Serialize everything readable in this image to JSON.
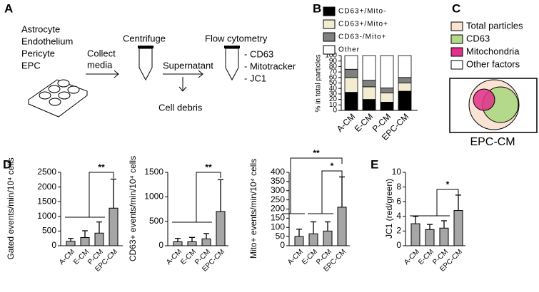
{
  "panel_labels": [
    "A",
    "B",
    "C",
    "D",
    "E"
  ],
  "panel_a": {
    "cells": [
      "Astrocyte",
      "Endothelium",
      "Pericyte",
      "EPC"
    ],
    "collect": [
      "Collect",
      "media"
    ],
    "centrifuge": "Centrifuge",
    "supernatant": "Supernatant",
    "debris": "Cell debris",
    "flow": "Flow cytometry",
    "markers": [
      "- CD63",
      "- Mitotracker",
      "- JC1"
    ]
  },
  "panel_c": {
    "legend": [
      {
        "name": "Total particles",
        "color": "#fbe3d4"
      },
      {
        "name": "CD63",
        "color": "#b5d98a"
      },
      {
        "name": "Mitochondria",
        "color": "#e0308a"
      },
      {
        "name": "Other factors",
        "color": "#ffffff"
      }
    ],
    "caption": "EPC-CM"
  },
  "chart_data": [
    {
      "type": "stacked_bar",
      "ylabel": "% in total particles",
      "categories": [
        "A-CM",
        "E-CM",
        "P-CM",
        "EPC-CM"
      ],
      "series": [
        {
          "name": "CD63+/Mito-",
          "color": "#000000",
          "values": [
            33,
            20,
            15,
            35
          ]
        },
        {
          "name": "CD63+/Mito+",
          "color": "#f3ecd2",
          "values": [
            27,
            23,
            17,
            15
          ]
        },
        {
          "name": "CD63-/Mito+",
          "color": "#808080",
          "values": [
            15,
            12,
            9,
            10
          ]
        },
        {
          "name": "Other",
          "color": "#ffffff",
          "values": [
            25,
            45,
            59,
            40
          ]
        }
      ],
      "ylim": [
        0,
        100
      ],
      "yticks": [
        0,
        10,
        20,
        30,
        40,
        50,
        60,
        70,
        80,
        90,
        100
      ]
    },
    {
      "type": "bar",
      "ylabel": "Gated events/min/10⁴ cells",
      "categories": [
        "A-CM",
        "E-CM",
        "P-CM",
        "EPC-CM"
      ],
      "color": "#a6a6a6",
      "values": [
        150,
        280,
        430,
        1280
      ],
      "errors": [
        100,
        230,
        380,
        990
      ],
      "ylim": [
        0,
        2500
      ],
      "yticks": [
        0,
        500,
        1000,
        1500,
        2000,
        2500
      ],
      "annotations": [
        "**"
      ]
    },
    {
      "type": "bar",
      "ylabel": "CD63+ events/min/10⁴ cells",
      "categories": [
        "A-CM",
        "E-CM",
        "P-CM",
        "EPC-CM"
      ],
      "color": "#a6a6a6",
      "values": [
        80,
        80,
        140,
        700
      ],
      "errors": [
        70,
        90,
        110,
        650
      ],
      "ylim": [
        0,
        1500
      ],
      "yticks": [
        0,
        500,
        1000,
        1500
      ],
      "annotations": [
        "**"
      ]
    },
    {
      "type": "bar",
      "ylabel": "Mito+ events/min/10⁴ cells",
      "categories": [
        "A-CM",
        "E-CM",
        "P-CM",
        "EPC-CM"
      ],
      "color": "#a6a6a6",
      "values": [
        50,
        65,
        80,
        210
      ],
      "errors": [
        40,
        65,
        50,
        165
      ],
      "ylim": [
        0,
        400
      ],
      "yticks": [
        0,
        50,
        100,
        150,
        200,
        250,
        300,
        350,
        400
      ],
      "annotations": [
        "**",
        "*"
      ]
    },
    {
      "type": "bar",
      "ylabel": "JC1 (red/green)",
      "categories": [
        "A-CM",
        "E-CM",
        "P-CM",
        "EPC-CM"
      ],
      "color": "#a6a6a6",
      "values": [
        3.0,
        2.2,
        2.4,
        4.8
      ],
      "errors": [
        1.0,
        0.7,
        1.0,
        2.1
      ],
      "ylim": [
        0,
        10
      ],
      "yticks": [
        0,
        2,
        4,
        6,
        8,
        10
      ],
      "annotations": [
        "*"
      ]
    }
  ]
}
